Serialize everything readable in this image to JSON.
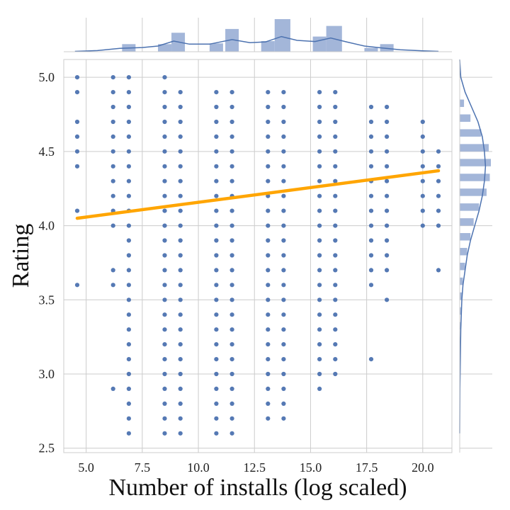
{
  "chart_data": {
    "type": "scatter",
    "xlabel": "Number of installs (log scaled)",
    "ylabel": "Rating",
    "xlim": [
      4.0,
      21.3
    ],
    "ylim": [
      2.47,
      5.12
    ],
    "xticks": [
      5.0,
      7.5,
      10.0,
      12.5,
      15.0,
      17.5,
      20.0
    ],
    "yticks": [
      2.5,
      3.0,
      3.5,
      4.0,
      4.5,
      5.0
    ],
    "xtick_labels": [
      "5.0",
      "7.5",
      "10.0",
      "12.5",
      "15.0",
      "17.5",
      "20.0"
    ],
    "ytick_labels": [
      "2.5",
      "3.0",
      "3.5",
      "4.0",
      "4.5",
      "5.0"
    ],
    "grid": true,
    "colors": {
      "points": "#4c72b0",
      "regression": "#ffa500",
      "marginal_bars": "#a3b6d9",
      "grid": "#cccccc"
    },
    "x_columns": [
      4.6,
      6.2,
      6.9,
      8.5,
      9.2,
      10.8,
      11.5,
      13.1,
      13.8,
      15.4,
      16.1,
      17.7,
      18.4,
      20.0,
      20.7
    ],
    "columns": [
      {
        "x": 4.6,
        "ratings": [
          5.0,
          4.9,
          4.7,
          4.6,
          4.5,
          4.4,
          4.1,
          3.6
        ]
      },
      {
        "x": 6.2,
        "ratings": [
          5.0,
          4.9,
          4.8,
          4.7,
          4.6,
          4.5,
          4.4,
          4.3,
          4.2,
          4.1,
          4.0,
          3.7,
          3.6,
          2.9
        ]
      },
      {
        "x": 6.9,
        "range": [
          2.6,
          5.0
        ]
      },
      {
        "x": 8.5,
        "range": [
          2.6,
          5.0
        ]
      },
      {
        "x": 9.2,
        "range": [
          2.6,
          4.9
        ]
      },
      {
        "x": 10.8,
        "range": [
          2.6,
          4.9
        ]
      },
      {
        "x": 11.5,
        "range": [
          2.6,
          4.9
        ]
      },
      {
        "x": 13.1,
        "range": [
          2.7,
          4.9
        ]
      },
      {
        "x": 13.8,
        "range": [
          2.7,
          4.9
        ]
      },
      {
        "x": 15.4,
        "range": [
          2.9,
          4.9
        ]
      },
      {
        "x": 16.1,
        "range": [
          3.0,
          4.9
        ]
      },
      {
        "x": 17.7,
        "ratings": [
          4.8,
          4.7,
          4.6,
          4.5,
          4.4,
          4.3,
          4.2,
          4.1,
          4.0,
          3.9,
          3.8,
          3.7,
          3.6,
          3.1
        ]
      },
      {
        "x": 18.4,
        "ratings": [
          4.8,
          4.7,
          4.6,
          4.5,
          4.4,
          4.3,
          4.2,
          4.1,
          4.0,
          3.9,
          3.8,
          3.7,
          3.5
        ]
      },
      {
        "x": 20.0,
        "ratings": [
          4.7,
          4.6,
          4.5,
          4.4,
          4.3,
          4.2,
          4.1,
          4.0
        ]
      },
      {
        "x": 20.7,
        "ratings": [
          4.5,
          4.4,
          4.3,
          4.2,
          4.1,
          4.0,
          3.7
        ]
      }
    ],
    "regression": {
      "x": [
        4.6,
        20.7
      ],
      "y": [
        4.05,
        4.37
      ]
    },
    "x_marginal": {
      "bins": [
        {
          "x0": 4.3,
          "x1": 4.9,
          "count": 0
        },
        {
          "x0": 6.6,
          "x1": 7.2,
          "count": 1
        },
        {
          "x0": 8.2,
          "x1": 8.8,
          "count": 1
        },
        {
          "x0": 8.8,
          "x1": 9.4,
          "count": 2.5
        },
        {
          "x0": 10.5,
          "x1": 11.1,
          "count": 1.1
        },
        {
          "x0": 11.2,
          "x1": 11.8,
          "count": 3
        },
        {
          "x0": 12.8,
          "x1": 13.4,
          "count": 1.4
        },
        {
          "x0": 13.4,
          "x1": 14.1,
          "count": 4.3
        },
        {
          "x0": 15.1,
          "x1": 15.7,
          "count": 2
        },
        {
          "x0": 15.7,
          "x1": 16.4,
          "count": 3.4
        },
        {
          "x0": 17.4,
          "x1": 18.0,
          "count": 0.5
        },
        {
          "x0": 18.1,
          "x1": 18.7,
          "count": 1
        }
      ],
      "kde": [
        [
          4.5,
          0.05
        ],
        [
          5.5,
          0.15
        ],
        [
          6.5,
          0.45
        ],
        [
          7.5,
          0.55
        ],
        [
          8.2,
          0.75
        ],
        [
          8.9,
          1.4
        ],
        [
          9.6,
          1.0
        ],
        [
          10.5,
          1.0
        ],
        [
          11.5,
          1.6
        ],
        [
          12.3,
          1.2
        ],
        [
          13.0,
          1.3
        ],
        [
          13.7,
          2.0
        ],
        [
          14.4,
          1.5
        ],
        [
          15.2,
          1.35
        ],
        [
          15.9,
          1.8
        ],
        [
          16.6,
          1.3
        ],
        [
          17.4,
          0.75
        ],
        [
          18.2,
          0.5
        ],
        [
          19.0,
          0.25
        ],
        [
          20.0,
          0.12
        ],
        [
          20.7,
          0.05
        ]
      ],
      "max": 4.3
    },
    "y_marginal": {
      "bins": [
        {
          "y0": 4.8,
          "y1": 4.85,
          "count": 0.2
        },
        {
          "y0": 4.7,
          "y1": 4.75,
          "count": 0.5
        },
        {
          "y0": 4.6,
          "y1": 4.65,
          "count": 1.0
        },
        {
          "y0": 4.5,
          "y1": 4.55,
          "count": 1.35
        },
        {
          "y0": 4.4,
          "y1": 4.45,
          "count": 1.45
        },
        {
          "y0": 4.3,
          "y1": 4.35,
          "count": 1.4
        },
        {
          "y0": 4.2,
          "y1": 4.25,
          "count": 1.25
        },
        {
          "y0": 4.1,
          "y1": 4.15,
          "count": 0.9
        },
        {
          "y0": 4.0,
          "y1": 4.05,
          "count": 0.65
        },
        {
          "y0": 3.9,
          "y1": 3.95,
          "count": 0.5
        },
        {
          "y0": 3.8,
          "y1": 3.85,
          "count": 0.35
        },
        {
          "y0": 3.7,
          "y1": 3.75,
          "count": 0.25
        },
        {
          "y0": 3.6,
          "y1": 3.65,
          "count": 0.15
        },
        {
          "y0": 3.5,
          "y1": 3.55,
          "count": 0.1
        },
        {
          "y0": 3.4,
          "y1": 3.45,
          "count": 0.06
        },
        {
          "y0": 3.3,
          "y1": 3.35,
          "count": 0.04
        },
        {
          "y0": 3.2,
          "y1": 3.25,
          "count": 0.03
        }
      ],
      "kde": [
        [
          5.12,
          0.0
        ],
        [
          5.0,
          0.05
        ],
        [
          4.9,
          0.25
        ],
        [
          4.8,
          0.55
        ],
        [
          4.7,
          0.85
        ],
        [
          4.6,
          1.05
        ],
        [
          4.5,
          1.15
        ],
        [
          4.4,
          1.2
        ],
        [
          4.3,
          1.15
        ],
        [
          4.2,
          1.05
        ],
        [
          4.1,
          0.9
        ],
        [
          4.0,
          0.7
        ],
        [
          3.9,
          0.5
        ],
        [
          3.8,
          0.35
        ],
        [
          3.7,
          0.25
        ],
        [
          3.6,
          0.15
        ],
        [
          3.5,
          0.1
        ],
        [
          3.3,
          0.05
        ],
        [
          3.1,
          0.03
        ],
        [
          2.9,
          0.01
        ],
        [
          2.6,
          0.0
        ]
      ],
      "max": 1.45
    }
  }
}
